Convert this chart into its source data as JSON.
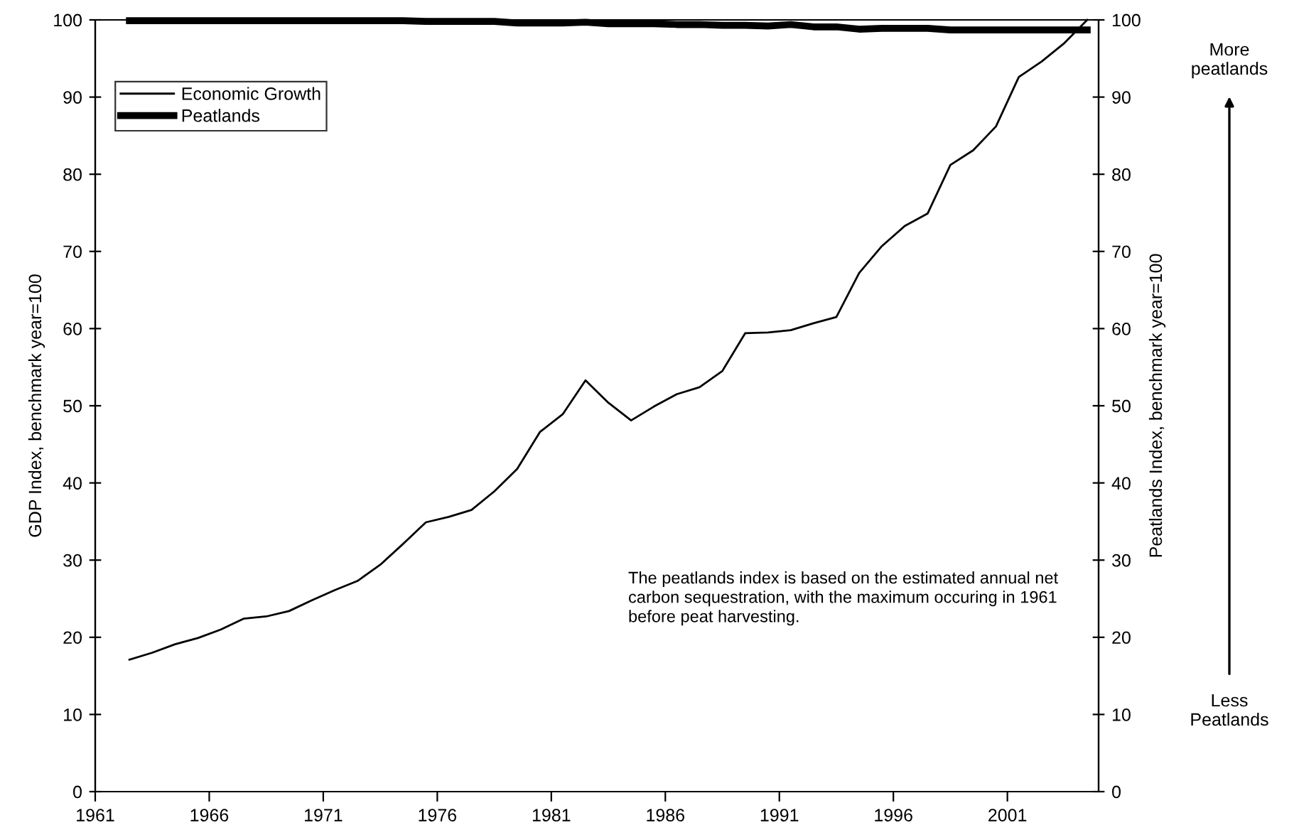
{
  "chart_data": {
    "type": "line",
    "x": [
      1962.5,
      1963.5,
      1964.5,
      1965.5,
      1966.5,
      1967.5,
      1968.5,
      1969.5,
      1970.5,
      1971.5,
      1972.5,
      1973.5,
      1974.5,
      1975.5,
      1976.5,
      1977.5,
      1978.5,
      1979.5,
      1980.5,
      1981.5,
      1982.5,
      1983.5,
      1984.5,
      1985.5,
      1986.5,
      1987.5,
      1988.5,
      1989.5,
      1990.5,
      1991.5,
      1992.5,
      1993.5,
      1994.5,
      1995.5,
      1996.5,
      1997.5,
      1998.5,
      1999.5,
      2000.5,
      2001.5,
      2002.5,
      2003.5,
      2004.5
    ],
    "series": [
      {
        "name": "Economic Growth",
        "color": "#000000",
        "values": [
          17.1,
          18.0,
          19.1,
          19.9,
          21.0,
          22.4,
          22.7,
          23.4,
          24.8,
          26.1,
          27.3,
          29.4,
          32.1,
          34.9,
          35.6,
          36.5,
          38.9,
          41.8,
          46.6,
          48.9,
          53.3,
          50.4,
          48.1,
          49.9,
          51.5,
          52.4,
          54.5,
          59.4,
          59.5,
          59.8,
          60.7,
          61.5,
          67.2,
          70.7,
          73.3,
          74.9,
          81.2,
          83.1,
          86.2,
          92.6,
          94.6,
          97.0,
          100
        ]
      },
      {
        "name": "Peatlands",
        "color": "#000000",
        "axis": "y2",
        "values": [
          99.9,
          99.9,
          99.9,
          99.9,
          99.9,
          99.9,
          99.9,
          99.9,
          99.9,
          99.9,
          99.9,
          99.9,
          99.9,
          99.8,
          99.8,
          99.8,
          99.8,
          99.6,
          99.6,
          99.6,
          99.7,
          99.5,
          99.5,
          99.5,
          99.4,
          99.4,
          99.3,
          99.3,
          99.2,
          99.4,
          99.1,
          99.1,
          98.8,
          98.9,
          98.9,
          98.9,
          98.7,
          98.7,
          98.7,
          98.7,
          98.7,
          98.7,
          98.7
        ]
      }
    ],
    "xlim": [
      1961,
      2005
    ],
    "xticks": [
      1961,
      1966,
      1971,
      1976,
      1981,
      1986,
      1991,
      1996,
      2001
    ],
    "ylim": [
      0,
      100
    ],
    "yticks": [
      0,
      10,
      20,
      30,
      40,
      50,
      60,
      70,
      80,
      90,
      100
    ],
    "y2lim": [
      0,
      100
    ],
    "y2ticks": [
      0,
      10,
      20,
      30,
      40,
      50,
      60,
      70,
      80,
      90,
      100
    ],
    "ylabel": "GDP Index, benchmark year=100",
    "y2label": "Peatlands Index, benchmark year=100",
    "legend": "top left",
    "grid": false,
    "marker": "none",
    "line_style": "solid",
    "annotations": [
      "The peatlands index is based on the estimated annual net carbon sequestration, with the maximum occuring in 1961 before peat harvesting.",
      "More peatlands",
      "Less Peatlands"
    ]
  }
}
